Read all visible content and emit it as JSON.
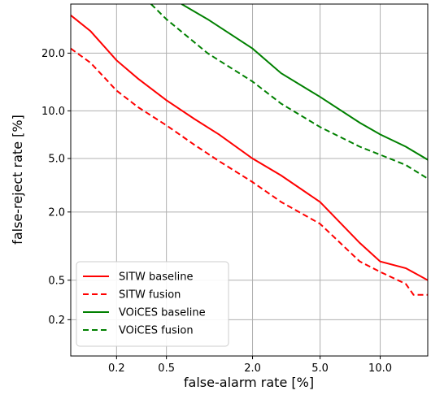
{
  "chart_data": {
    "type": "line",
    "xlabel": "false-alarm rate [%]",
    "ylabel": "false-reject rate [%]",
    "xscale": "probit",
    "yscale": "probit",
    "xlim": [
      0.08,
      16
    ],
    "ylim": [
      0.08,
      32
    ],
    "xticks": [
      0.2,
      0.5,
      2.0,
      5.0,
      10.0
    ],
    "xtick_labels": [
      "0.2",
      "0.5",
      "2.0",
      "5.0",
      "10.0"
    ],
    "yticks": [
      0.2,
      0.5,
      2.0,
      5.0,
      10.0,
      20.0
    ],
    "ytick_labels": [
      "0.2",
      "0.5",
      "2.0",
      "5.0",
      "10.0",
      "20.0"
    ],
    "grid": true,
    "legend_position": "bottom-left",
    "series": [
      {
        "name": "SITW baseline",
        "color": "#ff0000",
        "dash": "solid",
        "x": [
          0.08,
          0.12,
          0.2,
          0.3,
          0.5,
          0.8,
          1.2,
          2.0,
          3.0,
          5.0,
          8.0,
          10.0,
          13.0,
          16.0
        ],
        "y": [
          29,
          25,
          18.5,
          15,
          11.5,
          9,
          7.2,
          5,
          3.8,
          2.4,
          1.1,
          0.75,
          0.65,
          0.5
        ]
      },
      {
        "name": "SITW fusion",
        "color": "#ff0000",
        "dash": "dashed",
        "x": [
          0.08,
          0.12,
          0.2,
          0.3,
          0.5,
          0.8,
          1.2,
          2.0,
          3.0,
          5.0,
          8.0,
          10.0,
          13.0,
          14.0,
          16.0
        ],
        "y": [
          21,
          18,
          13,
          10.5,
          8.2,
          6.2,
          4.8,
          3.4,
          2.4,
          1.6,
          0.75,
          0.6,
          0.46,
          0.36,
          0.36
        ]
      },
      {
        "name": "VOiCES baseline",
        "color": "#008000",
        "dash": "solid",
        "x": [
          0.65,
          1.0,
          2.0,
          3.0,
          5.0,
          8.0,
          10.0,
          13.0,
          16.0
        ],
        "y": [
          32,
          28,
          21,
          16,
          12,
          8.5,
          7.2,
          6.0,
          4.9
        ]
      },
      {
        "name": "VOiCES fusion",
        "color": "#008000",
        "dash": "dashed",
        "x": [
          0.38,
          0.5,
          1.0,
          2.0,
          3.0,
          5.0,
          8.0,
          10.0,
          13.0,
          16.0
        ],
        "y": [
          32,
          28,
          20,
          14.5,
          11,
          8.0,
          6.0,
          5.3,
          4.5,
          3.6
        ]
      }
    ]
  }
}
